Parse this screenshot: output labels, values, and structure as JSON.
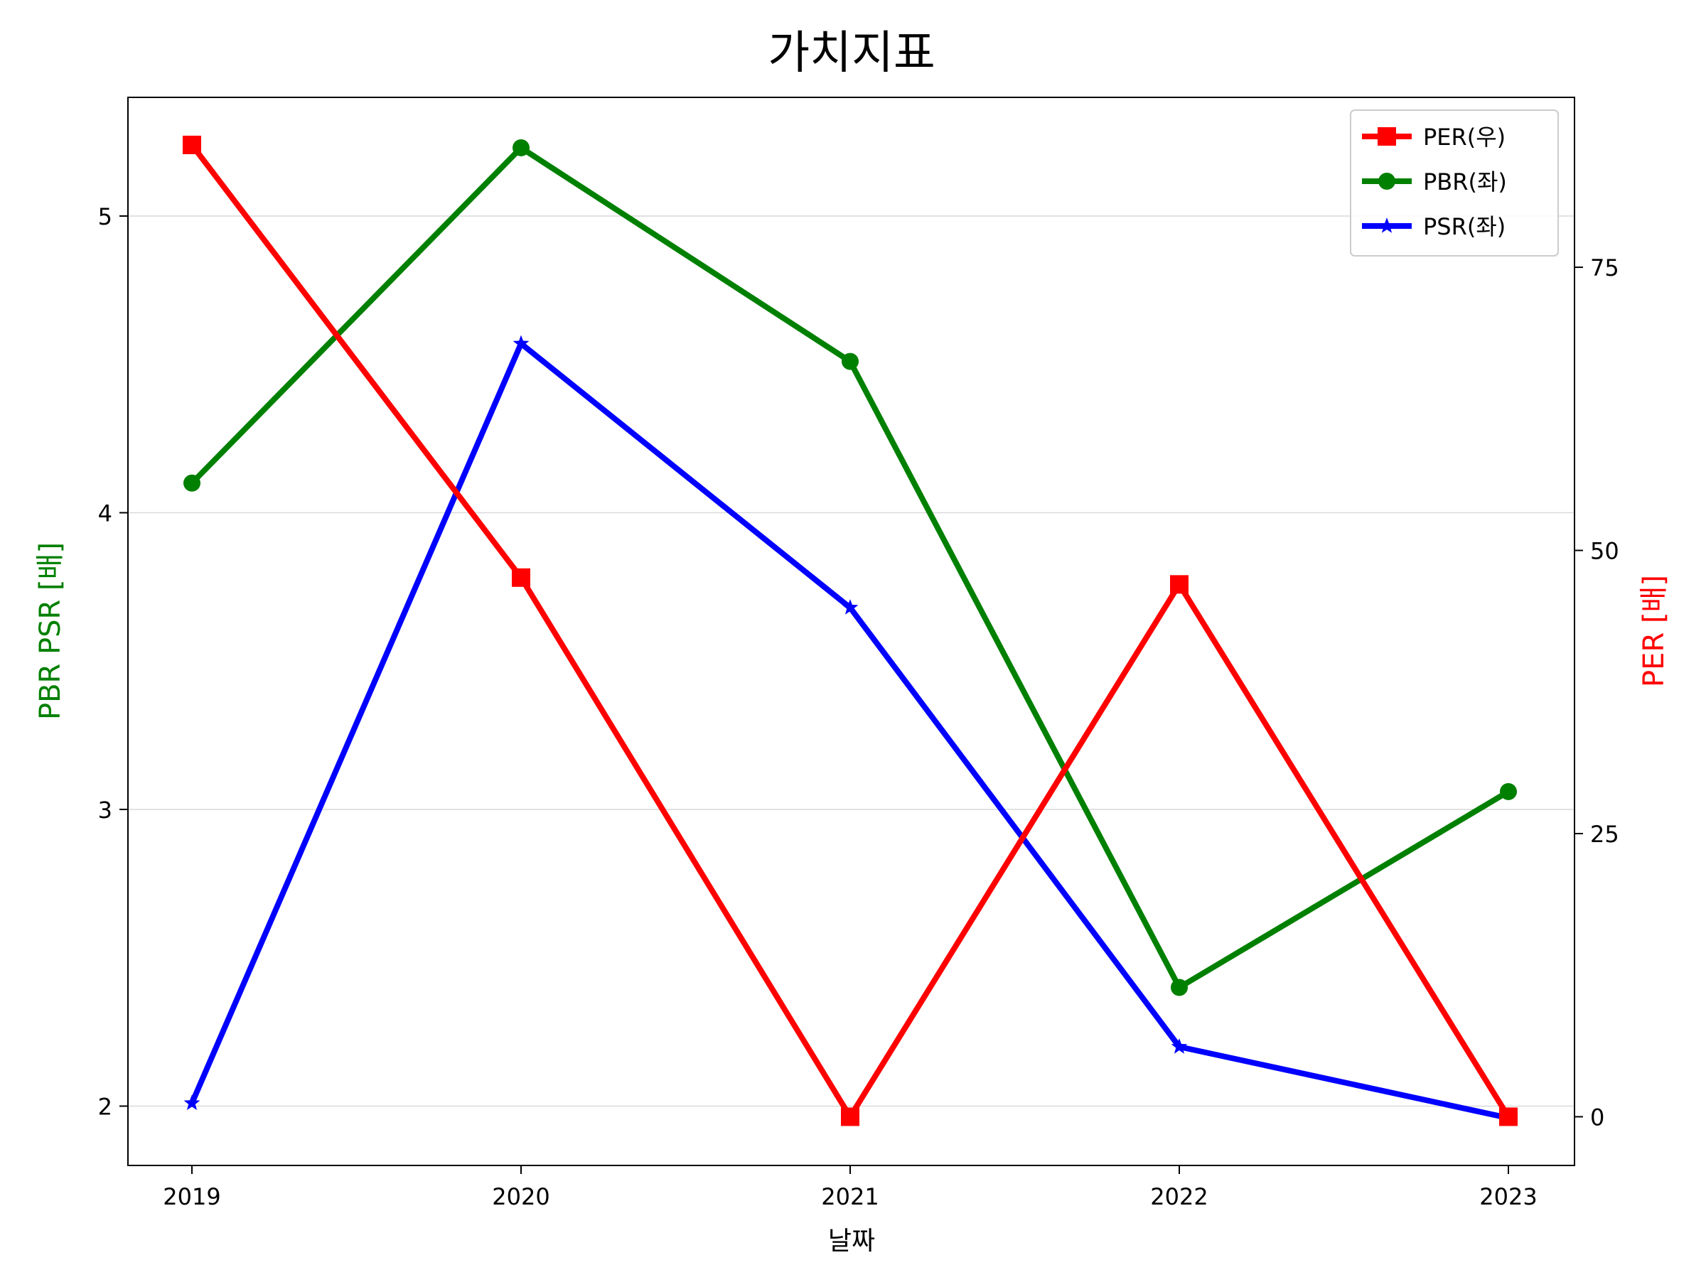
{
  "chart_data": {
    "type": "line",
    "title": "가치지표",
    "xlabel": "날짜",
    "ylabel_left": "PBR PSR [배]",
    "ylabel_right": "PER [배]",
    "categories": [
      "2019",
      "2020",
      "2021",
      "2022",
      "2023"
    ],
    "left_axis": {
      "ylim": [
        1.8,
        5.4
      ],
      "ticks": [
        2,
        3,
        4,
        5
      ],
      "tick_labels": [
        "2",
        "3",
        "4",
        "5"
      ],
      "grid": true
    },
    "right_axis": {
      "ylim": [
        -4.3,
        90.0
      ],
      "ticks": [
        0,
        25,
        50,
        75
      ],
      "tick_labels": [
        "0",
        "25",
        "50",
        "75"
      ]
    },
    "legend_position": "top-right",
    "series": [
      {
        "name": "PER(우)",
        "axis": "right",
        "marker": "square",
        "color": "#ff0000",
        "values": [
          85.8,
          47.6,
          0.0,
          47.0,
          0.0
        ]
      },
      {
        "name": "PBR(좌)",
        "axis": "left",
        "marker": "circle",
        "color": "#008000",
        "values": [
          4.1,
          5.23,
          4.51,
          2.4,
          3.06
        ]
      },
      {
        "name": "PSR(좌)",
        "axis": "left",
        "marker": "star",
        "color": "#0000ff",
        "values": [
          2.01,
          4.57,
          3.68,
          2.2,
          1.96
        ]
      }
    ],
    "colors": {
      "left_label": "#008000",
      "right_label": "#ff0000",
      "grid": "#d9d9d9",
      "axis": "#000000"
    }
  }
}
